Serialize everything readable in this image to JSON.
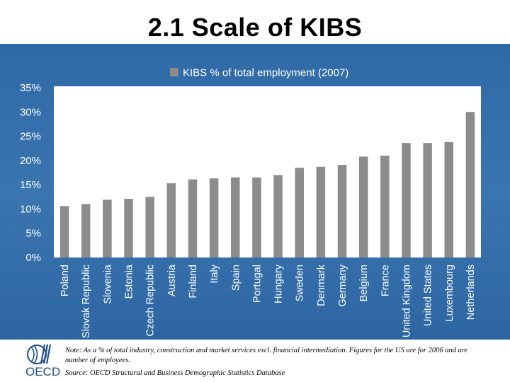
{
  "page": {
    "title": "2.1 Scale of KIBS"
  },
  "footer": {
    "note": "Note: As a % of total industry, construction and market services excl. financial intermediation. Figures for the US are for 2006 and are number of employees.",
    "source": "Source: OECD Structural and Business Demographic Statistics Database",
    "logo_text": "OECD"
  },
  "colors": {
    "bar": "#8c8c8c",
    "axis_text": "#ffffff",
    "plot_bg": "#ffffff"
  },
  "chart_data": {
    "type": "bar",
    "title": "",
    "xlabel": "",
    "ylabel": "",
    "ylim": [
      0,
      35
    ],
    "y_ticks": [
      "0%",
      "5%",
      "10%",
      "15%",
      "20%",
      "25%",
      "30%",
      "35%"
    ],
    "grid": false,
    "legend_position": "top",
    "categories": [
      "Poland",
      "Slovak Republic",
      "Slovenia",
      "Estonia",
      "Czech Republic",
      "Austria",
      "Finland",
      "Italy",
      "Spain",
      "Portugal",
      "Hungary",
      "Sweden",
      "Denmark",
      "Germany",
      "Belgium",
      "France",
      "United Kingdom",
      "United States",
      "Luxembourg",
      "Netherlands"
    ],
    "series": [
      {
        "name": "KIBS % of total employment (2007)",
        "values": [
          10.6,
          11.0,
          11.9,
          12.1,
          12.5,
          15.3,
          16.1,
          16.3,
          16.5,
          16.5,
          17.0,
          18.5,
          18.7,
          19.1,
          20.8,
          21.0,
          23.6,
          23.6,
          23.8,
          30.0
        ]
      }
    ]
  }
}
